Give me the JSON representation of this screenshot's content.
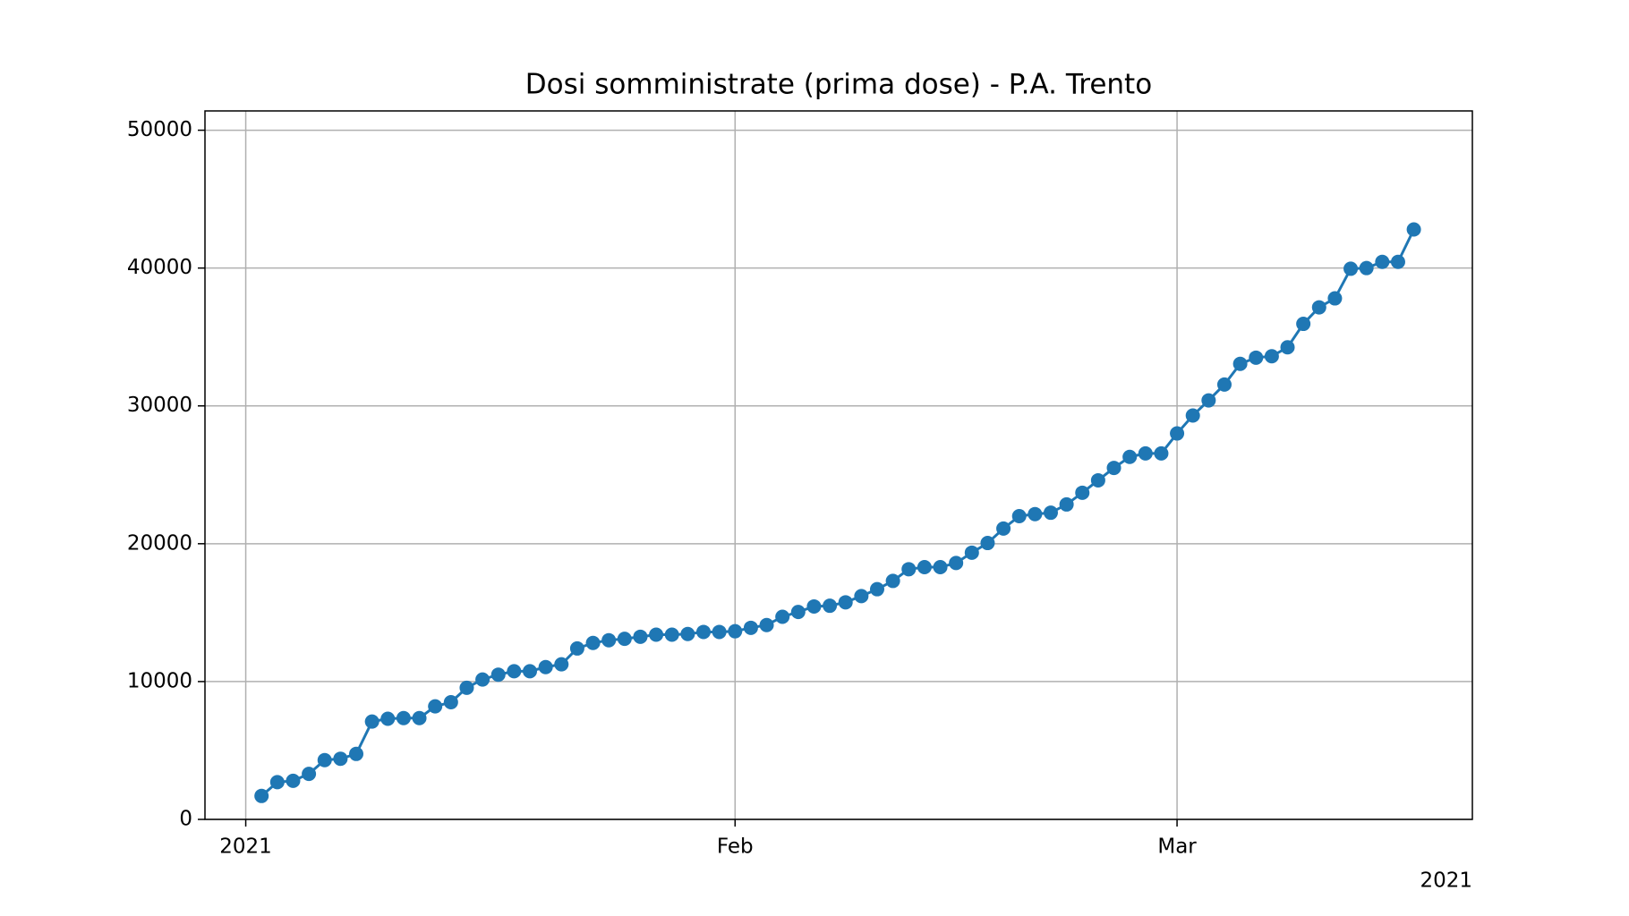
{
  "chart_data": {
    "type": "line",
    "title": "Dosi somministrate (prima dose) - P.A. Trento",
    "x": [
      "2021-01-02",
      "2021-01-03",
      "2021-01-04",
      "2021-01-05",
      "2021-01-06",
      "2021-01-07",
      "2021-01-08",
      "2021-01-09",
      "2021-01-10",
      "2021-01-11",
      "2021-01-12",
      "2021-01-13",
      "2021-01-14",
      "2021-01-15",
      "2021-01-16",
      "2021-01-17",
      "2021-01-18",
      "2021-01-19",
      "2021-01-20",
      "2021-01-21",
      "2021-01-22",
      "2021-01-23",
      "2021-01-24",
      "2021-01-25",
      "2021-01-26",
      "2021-01-27",
      "2021-01-28",
      "2021-01-29",
      "2021-01-30",
      "2021-01-31",
      "2021-02-01",
      "2021-02-02",
      "2021-02-03",
      "2021-02-04",
      "2021-02-05",
      "2021-02-06",
      "2021-02-07",
      "2021-02-08",
      "2021-02-09",
      "2021-02-10",
      "2021-02-11",
      "2021-02-12",
      "2021-02-13",
      "2021-02-14",
      "2021-02-15",
      "2021-02-16",
      "2021-02-17",
      "2021-02-18",
      "2021-02-19",
      "2021-02-20",
      "2021-02-21",
      "2021-02-22",
      "2021-02-23",
      "2021-02-24",
      "2021-02-25",
      "2021-02-26",
      "2021-02-27",
      "2021-02-28",
      "2021-03-01",
      "2021-03-02",
      "2021-03-03",
      "2021-03-04",
      "2021-03-05",
      "2021-03-06",
      "2021-03-07",
      "2021-03-08",
      "2021-03-09",
      "2021-03-10",
      "2021-03-11",
      "2021-03-12",
      "2021-03-13",
      "2021-03-14",
      "2021-03-15",
      "2021-03-16"
    ],
    "series": [
      {
        "color": "#1f77b4",
        "values": [
          1700,
          2700,
          2800,
          3300,
          4300,
          4400,
          4750,
          7100,
          7300,
          7350,
          7350,
          8200,
          8500,
          9550,
          10150,
          10500,
          10750,
          10750,
          11050,
          11250,
          12400,
          12800,
          13000,
          13100,
          13250,
          13400,
          13400,
          13450,
          13600,
          13600,
          13650,
          13900,
          14100,
          14700,
          15050,
          15450,
          15500,
          15750,
          16200,
          16700,
          17300,
          18150,
          18300,
          18300,
          18600,
          19350,
          20050,
          21100,
          22000,
          22150,
          22250,
          22850,
          23700,
          24600,
          25500,
          26300,
          26550,
          26550,
          28000,
          29300,
          30400,
          31550,
          33050,
          33500,
          33600,
          34250,
          35950,
          37150,
          37800,
          39950,
          40000,
          40450,
          40450,
          42800
        ]
      }
    ],
    "xlim": [
      "2020-12-29T10:00:00Z",
      "2021-03-19T17:00:00Z"
    ],
    "xticks": [
      {
        "value": "2021-01-01",
        "label": "2021"
      },
      {
        "value": "2021-02-01",
        "label": "Feb"
      },
      {
        "value": "2021-03-01",
        "label": "Mar"
      }
    ],
    "x_offset_label": "2021",
    "ylim": [
      0,
      51400
    ],
    "yticks": [
      0,
      10000,
      20000,
      30000,
      40000,
      50000
    ],
    "grid": true
  }
}
